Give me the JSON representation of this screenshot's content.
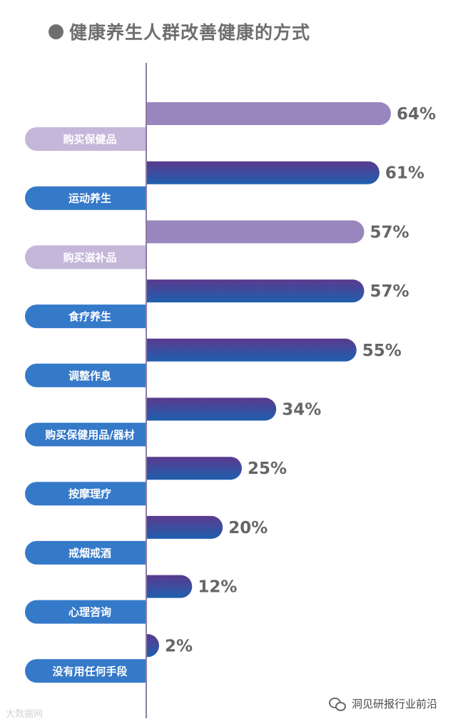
{
  "title": "健康养生人群改善健康的方式",
  "colors": {
    "bar_light": "#9a86be",
    "bar_dark_top": "#5b3a8e",
    "bar_dark_bottom": "#1f5fae",
    "label_light": "#c4b7da",
    "label_dark": "#3579c9",
    "axis": "#8c7aa8"
  },
  "chart_data": {
    "type": "bar",
    "orientation": "horizontal",
    "title": "健康养生人群改善健康的方式",
    "unit": "%",
    "categories": [
      "购买保健品",
      "运动养生",
      "购买滋补品",
      "食疗养生",
      "调整作息",
      "购买保健用品/器材",
      "按摩理疗",
      "戒烟戒酒",
      "心理咨询",
      "没有用任何手段"
    ],
    "values": [
      64,
      61,
      57,
      57,
      55,
      34,
      25,
      20,
      12,
      2
    ],
    "value_labels": [
      "64%",
      "61%",
      "57%",
      "57%",
      "55%",
      "34%",
      "25%",
      "20%",
      "12%",
      "2%"
    ],
    "highlight": [
      true,
      false,
      true,
      false,
      false,
      false,
      false,
      false,
      false,
      false
    ],
    "xlim": [
      0,
      64
    ],
    "grid": false,
    "legend": "none"
  },
  "watermark": {
    "left_text": "大数据网",
    "right_text": "洞见研报行业前沿",
    "right_icon": "wechat-icon"
  }
}
